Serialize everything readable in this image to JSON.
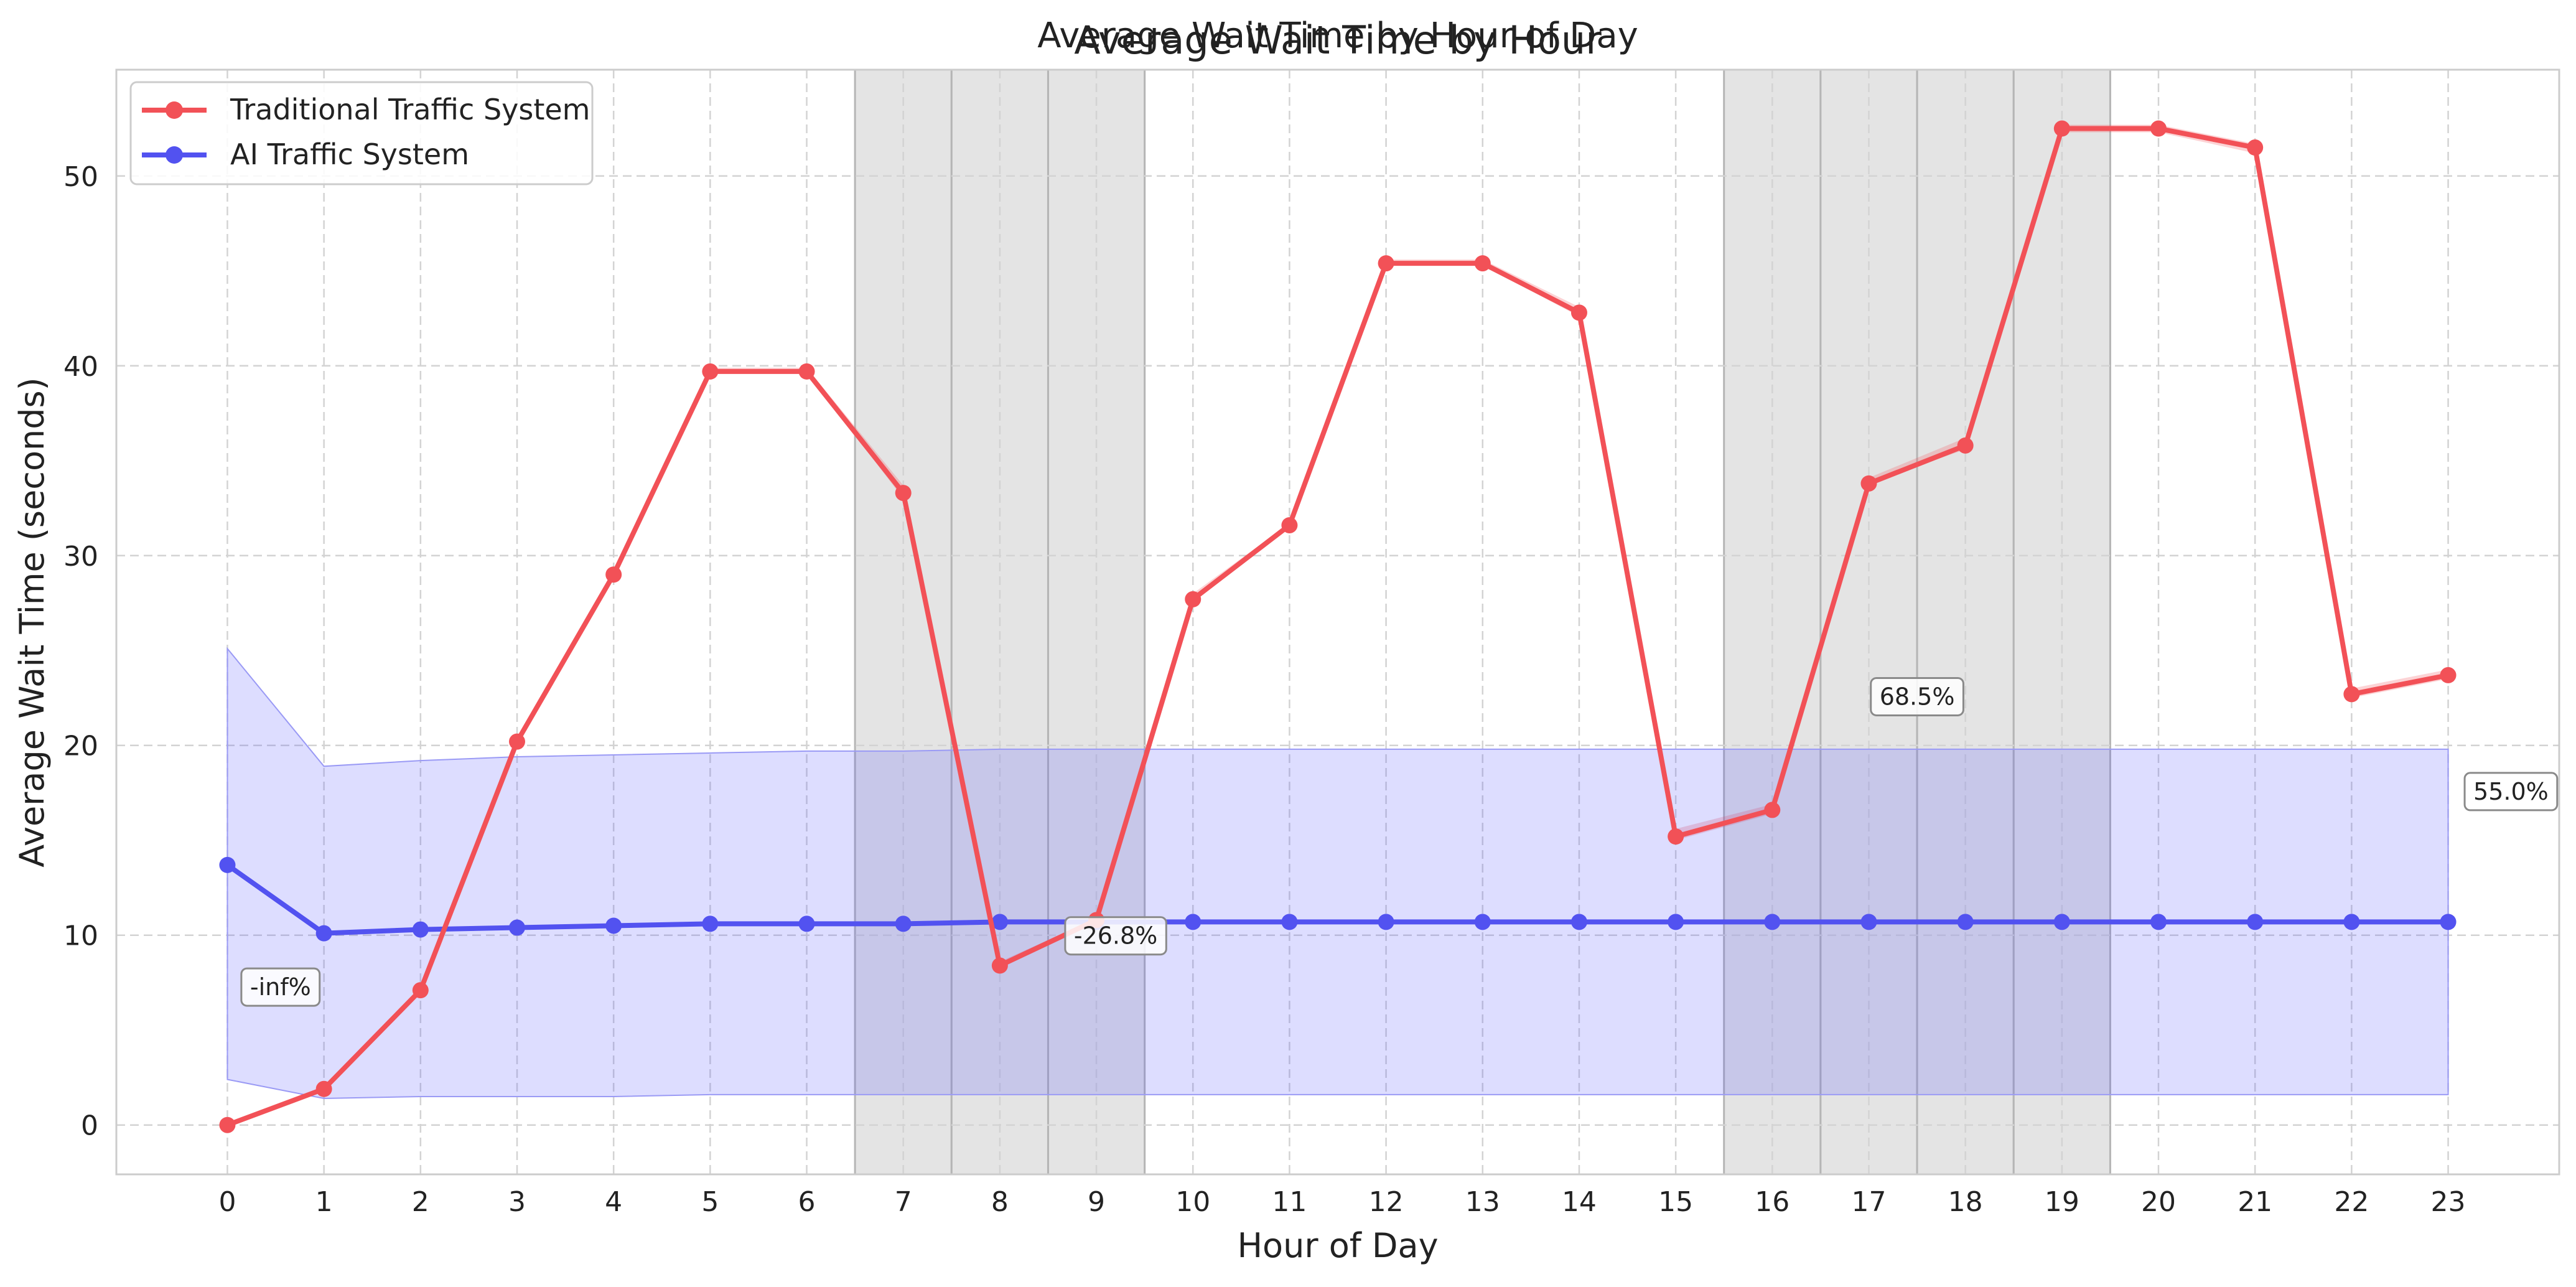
{
  "chart_data": {
    "type": "line",
    "title": "Average Wait Time by Hour",
    "suptitle": "Average Wait Time by Hour of Day",
    "xlabel": "Hour of Day",
    "ylabel": "Average Wait Time (seconds)",
    "x": [
      0,
      1,
      2,
      3,
      4,
      5,
      6,
      7,
      8,
      9,
      10,
      11,
      12,
      13,
      14,
      15,
      16,
      17,
      18,
      19,
      20,
      21,
      22,
      23
    ],
    "xlim": [
      -1.15,
      24.15
    ],
    "ylim": [
      -2.6,
      55.6
    ],
    "yticks": [
      0,
      10,
      20,
      30,
      40,
      50
    ],
    "grid": true,
    "legend_position": "top-left",
    "series": [
      {
        "name": "Traditional Traffic System",
        "color": "#f25157",
        "values": [
          0.0,
          1.9,
          7.1,
          20.2,
          29.0,
          39.7,
          39.7,
          33.3,
          8.4,
          10.8,
          27.7,
          31.6,
          45.4,
          45.4,
          42.8,
          15.2,
          16.6,
          33.8,
          35.8,
          52.5,
          52.5,
          51.5,
          22.7,
          23.7
        ],
        "band_lower": [
          0.0,
          1.9,
          7.0,
          20.2,
          29.0,
          39.7,
          39.7,
          33.0,
          8.4,
          10.7,
          27.7,
          31.6,
          45.3,
          45.3,
          42.6,
          15.0,
          16.4,
          33.8,
          35.6,
          52.3,
          52.3,
          51.2,
          22.5,
          23.5
        ],
        "band_upper": [
          0.0,
          1.9,
          7.2,
          20.2,
          29.0,
          39.9,
          39.9,
          33.7,
          8.6,
          10.9,
          28.0,
          31.7,
          45.6,
          45.6,
          43.1,
          15.6,
          16.9,
          34.1,
          36.2,
          52.7,
          52.7,
          51.7,
          23.0,
          24.0
        ]
      },
      {
        "name": "AI Traffic System",
        "color": "#5252f0",
        "values": [
          13.7,
          10.1,
          10.3,
          10.4,
          10.5,
          10.6,
          10.6,
          10.6,
          10.7,
          10.7,
          10.7,
          10.7,
          10.7,
          10.7,
          10.7,
          10.7,
          10.7,
          10.7,
          10.7,
          10.7,
          10.7,
          10.7,
          10.7,
          10.7
        ],
        "band_lower": [
          2.4,
          1.4,
          1.5,
          1.5,
          1.5,
          1.6,
          1.6,
          1.6,
          1.6,
          1.6,
          1.6,
          1.6,
          1.6,
          1.6,
          1.6,
          1.6,
          1.6,
          1.6,
          1.6,
          1.6,
          1.6,
          1.6,
          1.6,
          1.6
        ],
        "band_upper": [
          25.1,
          18.9,
          19.2,
          19.4,
          19.5,
          19.6,
          19.7,
          19.7,
          19.8,
          19.8,
          19.8,
          19.8,
          19.8,
          19.8,
          19.8,
          19.8,
          19.8,
          19.8,
          19.8,
          19.8,
          19.8,
          19.8,
          19.8,
          19.8
        ]
      }
    ],
    "shaded_hours": [
      7,
      8,
      9,
      16,
      17,
      18,
      19
    ],
    "shade_color": "#e4e4e4",
    "annotations": [
      {
        "text": "-inf%",
        "x": 0.55,
        "y": 7.3
      },
      {
        "text": "-26.8%",
        "x": 9.2,
        "y": 10.0
      },
      {
        "text": "68.5%",
        "x": 17.5,
        "y": 22.6
      },
      {
        "text": "55.0%",
        "x": 23.65,
        "y": 17.6
      }
    ]
  }
}
